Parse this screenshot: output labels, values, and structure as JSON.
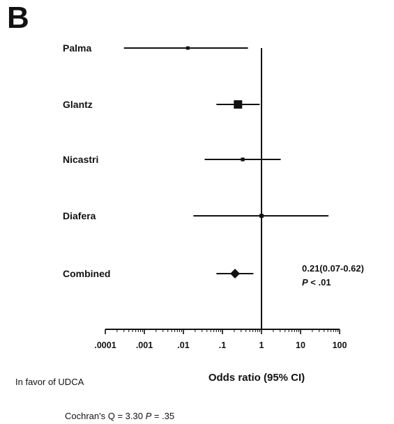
{
  "panel_letter": "B",
  "chart_data": {
    "type": "forest",
    "xscale": "log",
    "xlim": [
      0.0001,
      100
    ],
    "xlabel": "Odds ratio (95% CI)",
    "ticks": [
      {
        "value": 0.0001,
        "label": ".0001"
      },
      {
        "value": 0.001,
        "label": ".001"
      },
      {
        "value": 0.01,
        "label": ".01"
      },
      {
        "value": 0.1,
        "label": ".1"
      },
      {
        "value": 1,
        "label": "1"
      },
      {
        "value": 10,
        "label": "10"
      },
      {
        "value": 100,
        "label": "100"
      }
    ],
    "reference_line": 1,
    "studies": [
      {
        "name": "Palma",
        "or": 0.013,
        "lower": 0.0003,
        "upper": 0.45,
        "weight": 0.2
      },
      {
        "name": "Glantz",
        "or": 0.25,
        "lower": 0.07,
        "upper": 0.9,
        "weight": 1.0
      },
      {
        "name": "Nicastri",
        "or": 0.33,
        "lower": 0.035,
        "upper": 3.1,
        "weight": 0.25
      },
      {
        "name": "Diafera",
        "or": 1.0,
        "lower": 0.018,
        "upper": 52,
        "weight": 0.3
      }
    ],
    "combined": {
      "name": "Combined",
      "or": 0.21,
      "lower": 0.07,
      "upper": 0.62
    },
    "summary_lines": [
      "0.21(0.07-0.62)",
      "P < .01"
    ],
    "left_note": "In favor of UDCA",
    "heterogeneity": "Cochran's Q = 3.30 P = .35"
  }
}
